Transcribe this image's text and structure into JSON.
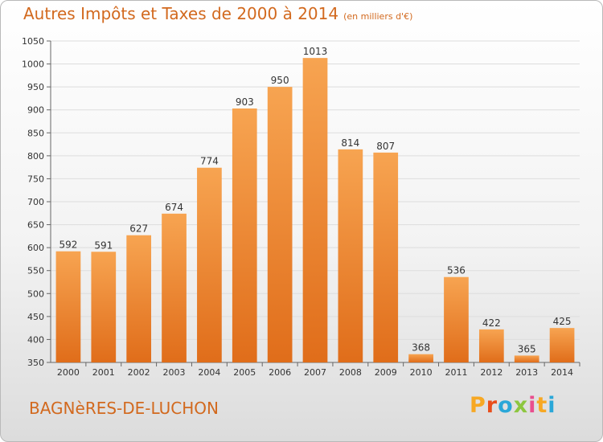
{
  "header": {
    "title": "Autres Impôts et Taxes de 2000 à 2014",
    "subtitle": "(en milliers d'€)"
  },
  "footer": {
    "city": "BAGNèRES-DE-LUCHON",
    "brand_letters": [
      "P",
      "r",
      "o",
      "x",
      "i",
      "t",
      "i"
    ],
    "brand_colors": [
      "#f7a823",
      "#e94e1b",
      "#2aa7d8",
      "#8dc63f",
      "#e94e8e",
      "#f7a823",
      "#2aa7d8"
    ]
  },
  "colors": {
    "bar_top": "#f7a451",
    "bar_bottom": "#e06d1a",
    "grid": "#dddddd",
    "axis": "#666666",
    "label": "#333333",
    "accent": "#d2691e"
  },
  "chart_data": {
    "type": "bar",
    "categories": [
      "2000",
      "2001",
      "2002",
      "2003",
      "2004",
      "2005",
      "2006",
      "2007",
      "2008",
      "2009",
      "2010",
      "2011",
      "2012",
      "2013",
      "2014"
    ],
    "values": [
      592,
      591,
      627,
      674,
      774,
      903,
      950,
      1013,
      814,
      807,
      368,
      536,
      422,
      365,
      425
    ],
    "ylim": [
      350,
      1050
    ],
    "yticks": [
      350,
      400,
      450,
      500,
      550,
      600,
      650,
      700,
      750,
      800,
      850,
      900,
      950,
      1000,
      1050
    ],
    "grid": true,
    "xlabel": "",
    "ylabel": ""
  }
}
